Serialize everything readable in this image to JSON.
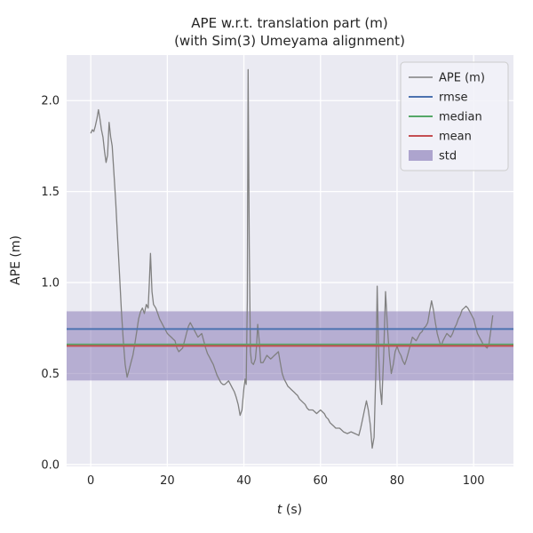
{
  "chart": {
    "title": "APE w.r.t. translation part (m)",
    "subtitle": "(with Sim(3) Umeyama alignment)",
    "xlabel_italic": "t",
    "xlabel_rest": " (s)",
    "ylabel": "APE (m)"
  },
  "colors": {
    "figure_bg": "#ffffff",
    "axes_bg": "#eaeaf2",
    "grid": "#ffffff",
    "text": "#262626",
    "ape": "#808080",
    "rmse": "#4c72b0",
    "median": "#55a868",
    "mean": "#c44e52",
    "std": "#8172b2",
    "legend_bg": "#f2f2f8",
    "legend_border": "#cccccc"
  },
  "legend": {
    "items": [
      {
        "label": "APE (m)",
        "type": "line",
        "color_key": "ape"
      },
      {
        "label": "rmse",
        "type": "line",
        "color_key": "rmse"
      },
      {
        "label": "median",
        "type": "line",
        "color_key": "median"
      },
      {
        "label": "mean",
        "type": "line",
        "color_key": "mean"
      },
      {
        "label": "std",
        "type": "patch",
        "color_key": "std"
      }
    ]
  },
  "chart_data": {
    "type": "line",
    "title": "APE w.r.t. translation part (m)\n(with Sim(3) Umeyama alignment)",
    "xlabel": "t (s)",
    "ylabel": "APE (m)",
    "xlim": [
      -6.3,
      110.4
    ],
    "ylim": [
      -0.01,
      2.25
    ],
    "xticks": [
      0,
      20,
      40,
      60,
      80,
      100
    ],
    "xtick_labels": [
      "0",
      "20",
      "40",
      "60",
      "80",
      "100"
    ],
    "yticks": [
      0.0,
      0.5,
      1.0,
      1.5,
      2.0
    ],
    "ytick_labels": [
      "0.0",
      "0.5",
      "1.0",
      "1.5",
      "2.0"
    ],
    "grid": true,
    "legend_position": "upper right",
    "stats": {
      "rmse": 0.745,
      "median": 0.66,
      "mean": 0.652,
      "std": 0.19
    },
    "std_band": [
      0.462,
      0.842
    ],
    "series_name": "APE (m)",
    "series": [
      [
        0,
        1.82
      ],
      [
        0.4,
        1.84
      ],
      [
        0.8,
        1.83
      ],
      [
        1.2,
        1.86
      ],
      [
        1.6,
        1.9
      ],
      [
        2.0,
        1.95
      ],
      [
        2.4,
        1.9
      ],
      [
        2.8,
        1.84
      ],
      [
        3.2,
        1.8
      ],
      [
        3.6,
        1.72
      ],
      [
        4.0,
        1.66
      ],
      [
        4.4,
        1.7
      ],
      [
        4.8,
        1.88
      ],
      [
        5.2,
        1.8
      ],
      [
        5.6,
        1.75
      ],
      [
        6.0,
        1.62
      ],
      [
        6.5,
        1.45
      ],
      [
        7.0,
        1.25
      ],
      [
        7.5,
        1.05
      ],
      [
        8.0,
        0.85
      ],
      [
        8.5,
        0.68
      ],
      [
        9.0,
        0.55
      ],
      [
        9.5,
        0.48
      ],
      [
        10.0,
        0.52
      ],
      [
        10.5,
        0.56
      ],
      [
        11.0,
        0.6
      ],
      [
        11.5,
        0.66
      ],
      [
        12.0,
        0.73
      ],
      [
        12.5,
        0.8
      ],
      [
        13.0,
        0.84
      ],
      [
        13.5,
        0.86
      ],
      [
        14.0,
        0.83
      ],
      [
        14.5,
        0.88
      ],
      [
        15.0,
        0.86
      ],
      [
        15.3,
        1.0
      ],
      [
        15.6,
        1.16
      ],
      [
        16.0,
        0.95
      ],
      [
        16.4,
        0.88
      ],
      [
        17.0,
        0.86
      ],
      [
        17.5,
        0.83
      ],
      [
        18.0,
        0.8
      ],
      [
        18.5,
        0.78
      ],
      [
        19.0,
        0.76
      ],
      [
        19.5,
        0.74
      ],
      [
        20.0,
        0.72
      ],
      [
        20.5,
        0.71
      ],
      [
        21.0,
        0.7
      ],
      [
        21.5,
        0.69
      ],
      [
        22.0,
        0.68
      ],
      [
        22.5,
        0.64
      ],
      [
        23.0,
        0.62
      ],
      [
        23.5,
        0.63
      ],
      [
        24.0,
        0.64
      ],
      [
        24.5,
        0.68
      ],
      [
        25.0,
        0.72
      ],
      [
        25.5,
        0.76
      ],
      [
        26.0,
        0.78
      ],
      [
        26.5,
        0.76
      ],
      [
        27.0,
        0.74
      ],
      [
        27.5,
        0.72
      ],
      [
        28.0,
        0.7
      ],
      [
        28.5,
        0.71
      ],
      [
        29.0,
        0.72
      ],
      [
        29.5,
        0.68
      ],
      [
        30.0,
        0.64
      ],
      [
        30.5,
        0.61
      ],
      [
        31.0,
        0.59
      ],
      [
        31.5,
        0.57
      ],
      [
        32.0,
        0.55
      ],
      [
        32.5,
        0.52
      ],
      [
        33.0,
        0.49
      ],
      [
        33.5,
        0.47
      ],
      [
        34.0,
        0.45
      ],
      [
        34.5,
        0.44
      ],
      [
        35.0,
        0.44
      ],
      [
        35.5,
        0.45
      ],
      [
        36.0,
        0.46
      ],
      [
        36.5,
        0.44
      ],
      [
        37.0,
        0.42
      ],
      [
        37.5,
        0.4
      ],
      [
        38.0,
        0.37
      ],
      [
        38.5,
        0.33
      ],
      [
        39.0,
        0.27
      ],
      [
        39.5,
        0.3
      ],
      [
        40.0,
        0.42
      ],
      [
        40.3,
        0.47
      ],
      [
        40.6,
        0.44
      ],
      [
        40.9,
        0.9
      ],
      [
        41.1,
        2.17
      ],
      [
        41.4,
        1.2
      ],
      [
        41.7,
        0.62
      ],
      [
        42.0,
        0.56
      ],
      [
        42.5,
        0.55
      ],
      [
        43.0,
        0.58
      ],
      [
        43.3,
        0.65
      ],
      [
        43.6,
        0.77
      ],
      [
        44.0,
        0.68
      ],
      [
        44.4,
        0.56
      ],
      [
        45.0,
        0.56
      ],
      [
        45.5,
        0.58
      ],
      [
        46.0,
        0.6
      ],
      [
        46.5,
        0.59
      ],
      [
        47.0,
        0.58
      ],
      [
        47.5,
        0.59
      ],
      [
        48.0,
        0.6
      ],
      [
        48.5,
        0.61
      ],
      [
        49.0,
        0.62
      ],
      [
        49.5,
        0.56
      ],
      [
        50.0,
        0.5
      ],
      [
        50.5,
        0.47
      ],
      [
        51.0,
        0.45
      ],
      [
        51.5,
        0.43
      ],
      [
        52.0,
        0.42
      ],
      [
        52.5,
        0.41
      ],
      [
        53.0,
        0.4
      ],
      [
        53.5,
        0.39
      ],
      [
        54.0,
        0.38
      ],
      [
        54.5,
        0.36
      ],
      [
        55.0,
        0.35
      ],
      [
        55.5,
        0.34
      ],
      [
        56.0,
        0.33
      ],
      [
        56.5,
        0.31
      ],
      [
        57.0,
        0.3
      ],
      [
        57.5,
        0.3
      ],
      [
        58.0,
        0.3
      ],
      [
        58.5,
        0.29
      ],
      [
        59.0,
        0.28
      ],
      [
        59.5,
        0.29
      ],
      [
        60.0,
        0.3
      ],
      [
        60.5,
        0.29
      ],
      [
        61.0,
        0.28
      ],
      [
        61.5,
        0.26
      ],
      [
        62.0,
        0.25
      ],
      [
        62.5,
        0.23
      ],
      [
        63.0,
        0.22
      ],
      [
        63.5,
        0.21
      ],
      [
        64.0,
        0.2
      ],
      [
        64.5,
        0.2
      ],
      [
        65.0,
        0.2
      ],
      [
        65.5,
        0.19
      ],
      [
        66.0,
        0.18
      ],
      [
        66.5,
        0.175
      ],
      [
        67.0,
        0.17
      ],
      [
        67.5,
        0.175
      ],
      [
        68.0,
        0.18
      ],
      [
        68.5,
        0.175
      ],
      [
        69.0,
        0.17
      ],
      [
        69.5,
        0.165
      ],
      [
        70.0,
        0.16
      ],
      [
        70.5,
        0.2
      ],
      [
        71.0,
        0.25
      ],
      [
        71.5,
        0.3
      ],
      [
        72.0,
        0.35
      ],
      [
        72.5,
        0.3
      ],
      [
        73.0,
        0.22
      ],
      [
        73.5,
        0.09
      ],
      [
        74.0,
        0.15
      ],
      [
        74.5,
        0.55
      ],
      [
        74.8,
        0.98
      ],
      [
        75.2,
        0.6
      ],
      [
        75.6,
        0.42
      ],
      [
        76.0,
        0.33
      ],
      [
        76.5,
        0.6
      ],
      [
        77.0,
        0.95
      ],
      [
        77.5,
        0.75
      ],
      [
        78.0,
        0.6
      ],
      [
        78.5,
        0.5
      ],
      [
        79.0,
        0.55
      ],
      [
        79.5,
        0.62
      ],
      [
        80.0,
        0.65
      ],
      [
        80.5,
        0.62
      ],
      [
        81.0,
        0.6
      ],
      [
        81.5,
        0.57
      ],
      [
        82.0,
        0.55
      ],
      [
        82.5,
        0.58
      ],
      [
        83.0,
        0.62
      ],
      [
        83.5,
        0.66
      ],
      [
        84.0,
        0.7
      ],
      [
        84.5,
        0.69
      ],
      [
        85.0,
        0.68
      ],
      [
        85.5,
        0.7
      ],
      [
        86.0,
        0.72
      ],
      [
        86.5,
        0.73
      ],
      [
        87.0,
        0.75
      ],
      [
        87.5,
        0.76
      ],
      [
        88.0,
        0.78
      ],
      [
        88.5,
        0.84
      ],
      [
        89.0,
        0.9
      ],
      [
        89.5,
        0.85
      ],
      [
        90.0,
        0.78
      ],
      [
        90.5,
        0.72
      ],
      [
        91.0,
        0.68
      ],
      [
        91.5,
        0.65
      ],
      [
        92.0,
        0.68
      ],
      [
        92.5,
        0.7
      ],
      [
        93.0,
        0.72
      ],
      [
        93.5,
        0.71
      ],
      [
        94.0,
        0.7
      ],
      [
        94.5,
        0.72
      ],
      [
        95.0,
        0.75
      ],
      [
        95.5,
        0.77
      ],
      [
        96.0,
        0.8
      ],
      [
        96.5,
        0.82
      ],
      [
        97.0,
        0.85
      ],
      [
        97.5,
        0.86
      ],
      [
        98.0,
        0.87
      ],
      [
        98.5,
        0.86
      ],
      [
        99.0,
        0.84
      ],
      [
        99.5,
        0.82
      ],
      [
        100.0,
        0.8
      ],
      [
        100.5,
        0.76
      ],
      [
        101.0,
        0.72
      ],
      [
        101.5,
        0.7
      ],
      [
        102.0,
        0.68
      ],
      [
        102.5,
        0.66
      ],
      [
        103.0,
        0.65
      ],
      [
        103.5,
        0.64
      ],
      [
        104.0,
        0.66
      ],
      [
        104.5,
        0.74
      ],
      [
        105.0,
        0.82
      ]
    ]
  }
}
